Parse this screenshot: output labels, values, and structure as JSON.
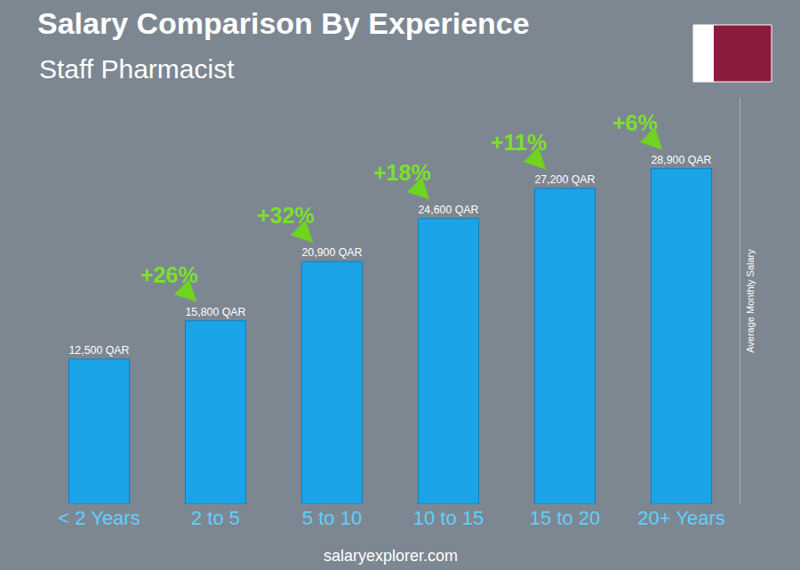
{
  "chart_data": {
    "type": "bar",
    "title": "Salary Comparison By Experience",
    "subtitle": "Staff Pharmacist",
    "categories": [
      "< 2 Years",
      "2 to 5",
      "5 to 10",
      "10 to 15",
      "15 to 20",
      "20+ Years"
    ],
    "values": [
      12500,
      15800,
      20900,
      24600,
      27200,
      28900
    ],
    "value_labels": [
      "12,500 QAR",
      "15,800 QAR",
      "20,900 QAR",
      "24,600 QAR",
      "27,200 QAR",
      "28,900 QAR"
    ],
    "data_labels": true,
    "color": "#1ba3e8",
    "ylim": [
      0,
      35000
    ],
    "tick_labels": "x",
    "ylabel": "Average Monthly Salary",
    "annotations": [
      "+26%",
      "+32%",
      "+18%",
      "+11%",
      "+6%"
    ],
    "source": "salaryexplorer.com"
  }
}
